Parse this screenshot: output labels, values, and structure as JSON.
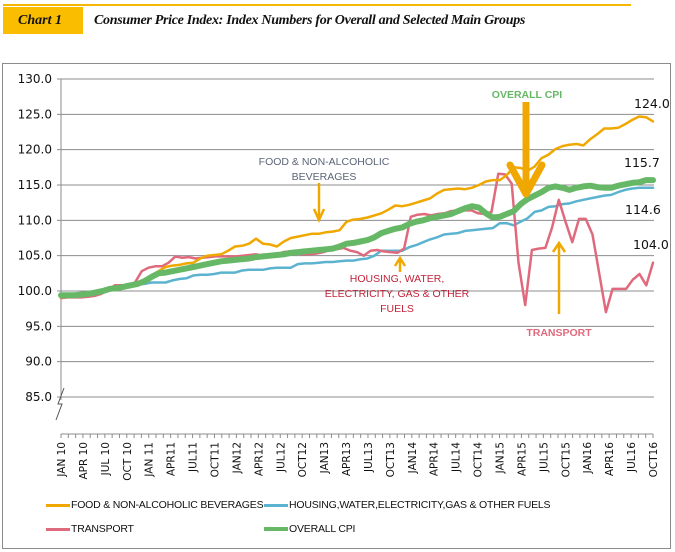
{
  "header": {
    "chart_label": "Chart 1",
    "title": "Consumer Price Index: Index Numbers for Overall and Selected Main Groups"
  },
  "colors": {
    "food": "#f0a800",
    "housing": "#5bb3d0",
    "transport": "#e06a7d",
    "overall": "#66b866",
    "accent": "#fbbd00",
    "grid": "#8c8c8c"
  },
  "annotations": {
    "food": [
      "FOOD & NON-ALCOHOLIC",
      "BEVERAGES"
    ],
    "housing": [
      "HOUSING, WATER,",
      "ELECTRICITY, GAS & OTHER",
      "FUELS"
    ],
    "overall": "OVERALL CPI",
    "transport": "TRANSPORT"
  },
  "end_labels": {
    "food": "124.0",
    "overall": "115.7",
    "housing": "114.6",
    "transport": "104.0"
  },
  "chart_data": {
    "type": "line",
    "title": "Consumer Price Index: Index Numbers for Overall and Selected Main Groups",
    "xlabel": "",
    "ylabel": "",
    "ylim": [
      80,
      130
    ],
    "yticks": [
      "130.0",
      "125.0",
      "120.0",
      "115.0",
      "110.0",
      "105.0",
      "100.0",
      "95.0",
      "90.0",
      "85.0"
    ],
    "axis_break": true,
    "grid": true,
    "legend_position": "bottom",
    "x_start": "JAN 2010",
    "x_end": "OCT 2016",
    "x_tick_labels": [
      "JAN 10",
      "APR 10",
      "JUL 10",
      "OCT 10",
      "JAN 11",
      "APR11",
      "JUL11",
      "OCT11",
      "JAN12",
      "APR12",
      "JUL12",
      "OCT12",
      "JAN13",
      "APR13",
      "JUL13",
      "OCT13",
      "JAN14",
      "APR14",
      "JUL14",
      "OCT14",
      "JAN15",
      "APR15",
      "JUL15",
      "OCT15",
      "JAN16",
      "APR16",
      "JUL16",
      "OCT16"
    ],
    "series": [
      {
        "key": "food",
        "name": "FOOD & NON-ALCOHOLIC BEVERAGES",
        "values": [
          99.1,
          99.2,
          99.3,
          99.5,
          99.7,
          99.9,
          100.1,
          100.3,
          100.5,
          100.6,
          100.7,
          100.8,
          101.2,
          102.0,
          102.8,
          103.4,
          103.6,
          103.7,
          103.9,
          104.0,
          104.6,
          105.0,
          105.1,
          105.2,
          105.7,
          106.3,
          106.4,
          106.7,
          107.4,
          106.7,
          106.6,
          106.3,
          107.0,
          107.5,
          107.7,
          107.9,
          108.1,
          108.1,
          108.3,
          108.4,
          108.6,
          109.8,
          110.1,
          110.2,
          110.4,
          110.7,
          111.0,
          111.5,
          112.1,
          112.0,
          112.2,
          112.5,
          112.8,
          113.1,
          113.8,
          114.3,
          114.4,
          114.5,
          114.4,
          114.6,
          115.0,
          115.5,
          115.7,
          115.7,
          116.4,
          117.5,
          117.4,
          117.0,
          117.6,
          118.8,
          119.3,
          120.1,
          120.5,
          120.7,
          120.8,
          120.6,
          121.5,
          122.2,
          123.0,
          123.0,
          123.1,
          123.6,
          124.2,
          124.7,
          124.6,
          124.0
        ]
      },
      {
        "key": "housing",
        "name": "HOUSING,WATER,ELECTRICITY,GAS & OTHER FUELS",
        "values": [
          99.4,
          99.4,
          99.4,
          99.5,
          99.7,
          99.9,
          100.1,
          100.3,
          100.5,
          100.6,
          100.8,
          100.9,
          101.0,
          101.2,
          101.2,
          101.2,
          101.5,
          101.7,
          101.8,
          102.2,
          102.3,
          102.3,
          102.4,
          102.6,
          102.6,
          102.6,
          102.9,
          103.0,
          103.0,
          103.0,
          103.2,
          103.3,
          103.3,
          103.3,
          103.8,
          103.9,
          103.9,
          104.0,
          104.1,
          104.1,
          104.2,
          104.3,
          104.3,
          104.5,
          104.6,
          105.0,
          105.7,
          105.7,
          105.7,
          105.7,
          106.2,
          106.5,
          106.9,
          107.3,
          107.6,
          108.0,
          108.1,
          108.2,
          108.5,
          108.6,
          108.7,
          108.8,
          108.9,
          109.6,
          109.6,
          109.3,
          109.8,
          110.3,
          111.2,
          111.4,
          111.9,
          112.0,
          112.3,
          112.4,
          112.7,
          112.9,
          113.1,
          113.3,
          113.5,
          113.6,
          114.0,
          114.3,
          114.5,
          114.6,
          114.6,
          114.6
        ]
      },
      {
        "key": "transport",
        "name": "TRANSPORT",
        "values": [
          99.0,
          99.1,
          99.1,
          99.1,
          99.2,
          99.3,
          99.6,
          100.1,
          100.8,
          100.8,
          100.8,
          101.2,
          102.8,
          103.3,
          103.5,
          103.5,
          104.0,
          104.9,
          104.7,
          104.8,
          104.6,
          104.7,
          104.8,
          104.9,
          104.9,
          104.9,
          104.9,
          105.0,
          105.1,
          105.2,
          105.0,
          105.0,
          105.1,
          105.5,
          105.6,
          105.3,
          105.2,
          105.2,
          105.3,
          105.5,
          105.8,
          105.9,
          106.1,
          105.7,
          105.5,
          105.0,
          105.7,
          105.8,
          105.6,
          105.5,
          105.4,
          106.0,
          110.5,
          110.8,
          110.9,
          110.7,
          110.9,
          111.0,
          111.3,
          111.4,
          111.4,
          111.4,
          111.0,
          110.9,
          111.2,
          116.6,
          116.5,
          115.2,
          104.0,
          98.0,
          105.8,
          106.0,
          106.1,
          109.0,
          112.9,
          109.8,
          106.9,
          110.2,
          110.2,
          108.0,
          102.5,
          97.0,
          100.3,
          100.3,
          100.3,
          101.6,
          102.4,
          100.8,
          104.0
        ]
      },
      {
        "key": "overall",
        "name": "OVERALL CPI",
        "values": [
          99.4,
          99.4,
          99.4,
          99.5,
          99.6,
          99.8,
          100.0,
          100.3,
          100.4,
          100.6,
          100.8,
          101.0,
          101.4,
          102.0,
          102.5,
          102.6,
          102.8,
          103.0,
          103.2,
          103.4,
          103.6,
          103.8,
          104.0,
          104.2,
          104.3,
          104.4,
          104.5,
          104.6,
          104.8,
          104.9,
          105.0,
          105.1,
          105.2,
          105.4,
          105.5,
          105.6,
          105.7,
          105.8,
          105.9,
          106.0,
          106.3,
          106.7,
          106.8,
          107.0,
          107.2,
          107.6,
          108.2,
          108.5,
          108.8,
          109.0,
          109.5,
          109.8,
          110.0,
          110.3,
          110.5,
          110.7,
          110.9,
          111.3,
          111.7,
          112.0,
          111.8,
          111.0,
          110.4,
          110.5,
          110.9,
          111.3,
          112.3,
          113.0,
          113.5,
          114.0,
          114.6,
          114.8,
          114.6,
          114.3,
          114.6,
          114.8,
          114.9,
          114.7,
          114.6,
          114.6,
          114.9,
          115.1,
          115.3,
          115.4,
          115.7,
          115.7
        ]
      }
    ]
  }
}
